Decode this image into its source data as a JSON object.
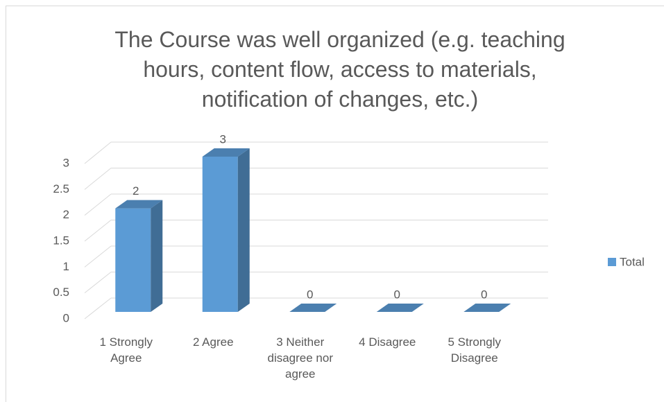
{
  "chart_data": {
    "type": "bar3d",
    "title": "The Course was well organized (e.g. teaching hours, content flow, access to materials, notification of changes, etc.)",
    "categories": [
      "1 Strongly Agree",
      "2 Agree",
      "3 Neither disagree nor agree",
      "4 Disagree",
      "5 Strongly Disagree"
    ],
    "series": [
      {
        "name": "Total",
        "color": "#5b9bd5",
        "values": [
          2,
          3,
          0,
          0,
          0
        ]
      }
    ],
    "ylim": [
      0,
      3
    ],
    "yticks": [
      0,
      0.5,
      1,
      1.5,
      2,
      2.5,
      3
    ],
    "grid": true,
    "legend": "right"
  }
}
